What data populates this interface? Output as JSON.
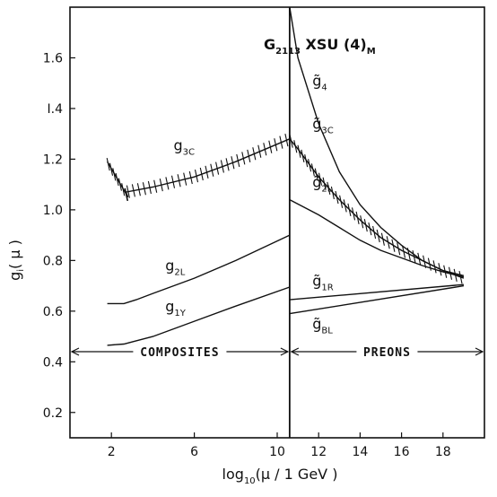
{
  "chart_data": {
    "type": "line",
    "title_main": "G",
    "title_sub": "2113",
    "title_rest": " XSU (4)",
    "title_end": "M",
    "ylabel_main": "g",
    "ylabel_sub": "i",
    "ylabel_rest": "( μ )",
    "xlabel_main": "log",
    "xlabel_sub": "10",
    "xlabel_rest": "(μ / 1 GeV )",
    "xlim": [
      0,
      20
    ],
    "ylim": [
      0.1,
      1.8
    ],
    "xticks": [
      2,
      6,
      10,
      12,
      14,
      16,
      18
    ],
    "xtick_labels": [
      "2",
      "6",
      "10",
      "12",
      "14",
      "16",
      "18"
    ],
    "yticks": [
      0.2,
      0.4,
      0.6,
      0.8,
      1.0,
      1.2,
      1.4,
      1.6
    ],
    "ytick_labels": [
      "0.2",
      "0.4",
      "0.6",
      "0.8",
      "1.0",
      "1.2",
      "I.4",
      "1.6"
    ],
    "divider_x": 10.6,
    "regions": [
      {
        "text": "COMPOSITES",
        "x_from": 0,
        "x_to": 10.6,
        "y": 0.44
      },
      {
        "text": "PREONS",
        "x_from": 10.6,
        "x_to": 20,
        "y": 0.44
      }
    ],
    "series": [
      {
        "name_main": "g",
        "name_sub": "3C",
        "label_x": 5.0,
        "label_y": 1.235,
        "hatched": true,
        "x": [
          1.8,
          2.8,
          2.7,
          4,
          6,
          8,
          10.6
        ],
        "y": [
          1.19,
          1.05,
          1.07,
          1.09,
          1.13,
          1.19,
          1.28
        ]
      },
      {
        "name_main": "g",
        "name_sub": "2L",
        "label_x": 4.6,
        "label_y": 0.76,
        "hatched": false,
        "x": [
          1.8,
          2.6,
          3.2,
          4,
          6,
          8,
          10.6
        ],
        "y": [
          0.63,
          0.63,
          0.645,
          0.67,
          0.73,
          0.8,
          0.9
        ]
      },
      {
        "name_main": "g",
        "name_sub": "1Y",
        "label_x": 4.6,
        "label_y": 0.6,
        "hatched": false,
        "x": [
          1.8,
          2.6,
          4,
          6,
          8,
          10.6
        ],
        "y": [
          0.465,
          0.47,
          0.5,
          0.56,
          0.62,
          0.695
        ]
      },
      {
        "name_main": "g̃",
        "name_sub": "4",
        "label_x": 11.7,
        "label_y": 1.49,
        "hatched": false,
        "x": [
          10.6,
          11,
          12,
          13,
          14,
          15,
          16,
          17,
          18,
          19
        ],
        "y": [
          1.8,
          1.6,
          1.34,
          1.15,
          1.02,
          0.93,
          0.86,
          0.8,
          0.76,
          0.74
        ]
      },
      {
        "name_main": "g̃",
        "name_sub": "3C",
        "label_x": 11.7,
        "label_y": 1.32,
        "hatched": true,
        "x": [
          10.6,
          11,
          12,
          13,
          14,
          15,
          16,
          17,
          18,
          19
        ],
        "y": [
          1.28,
          1.24,
          1.13,
          1.04,
          0.96,
          0.89,
          0.84,
          0.8,
          0.76,
          0.73
        ]
      },
      {
        "name_main": "g̃",
        "name_sub": "2L",
        "label_x": 11.7,
        "label_y": 1.09,
        "hatched": false,
        "x": [
          10.6,
          12,
          13,
          14,
          15,
          16,
          17,
          18,
          19
        ],
        "y": [
          1.04,
          0.98,
          0.93,
          0.88,
          0.84,
          0.81,
          0.78,
          0.755,
          0.735
        ]
      },
      {
        "name_main": "g̃",
        "name_sub": "1R",
        "label_x": 11.7,
        "label_y": 0.7,
        "hatched": false,
        "x": [
          10.6,
          19
        ],
        "y": [
          0.645,
          0.705
        ]
      },
      {
        "name_main": "g̃",
        "name_sub": "BL",
        "label_x": 11.7,
        "label_y": 0.53,
        "hatched": false,
        "x": [
          10.6,
          19
        ],
        "y": [
          0.59,
          0.7
        ]
      }
    ]
  }
}
